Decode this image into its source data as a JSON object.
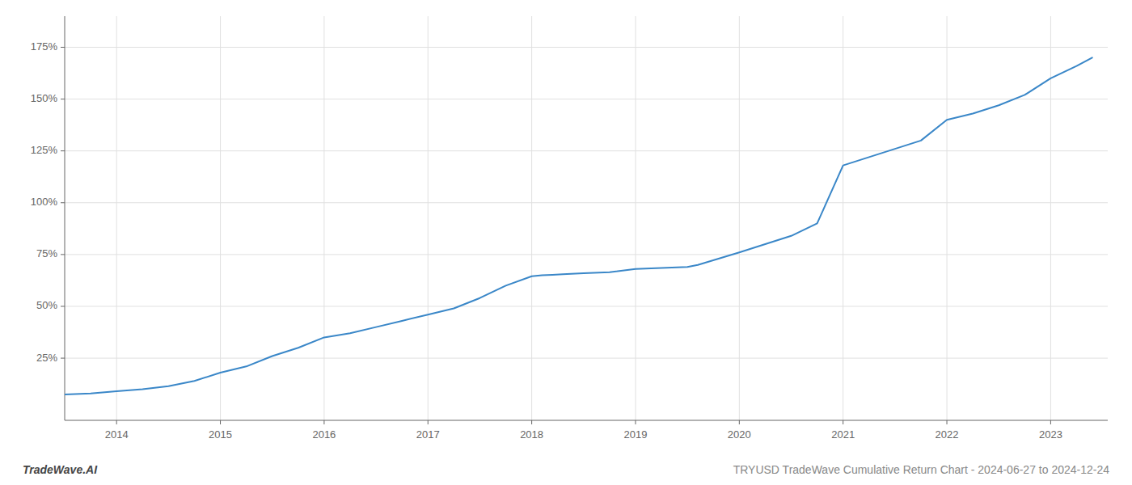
{
  "chart_data": {
    "type": "line",
    "x": [
      2013.5,
      2013.75,
      2014.0,
      2014.25,
      2014.5,
      2014.75,
      2015.0,
      2015.25,
      2015.5,
      2015.75,
      2016.0,
      2016.25,
      2016.5,
      2016.75,
      2017.0,
      2017.25,
      2017.5,
      2017.75,
      2018.0,
      2018.1,
      2018.2,
      2018.3,
      2018.5,
      2018.75,
      2019.0,
      2019.25,
      2019.5,
      2019.6,
      2020.0,
      2020.25,
      2020.5,
      2020.75,
      2021.0,
      2021.25,
      2021.5,
      2021.75,
      2022.0,
      2022.25,
      2022.5,
      2022.75,
      2023.0,
      2023.25,
      2023.4
    ],
    "values": [
      7.5,
      8.0,
      9.0,
      10.0,
      11.5,
      14.0,
      18.0,
      21.0,
      26.0,
      30.0,
      35.0,
      37.0,
      40.0,
      43.0,
      46.0,
      49.0,
      54.0,
      60.0,
      64.5,
      65.0,
      65.2,
      65.5,
      66.0,
      66.5,
      68.0,
      68.5,
      69.0,
      70.0,
      76.0,
      80.0,
      84.0,
      90.0,
      118.0,
      122.0,
      126.0,
      130.0,
      140.0,
      143.0,
      147.0,
      152.0,
      160.0,
      166.0,
      170.0
    ],
    "color": "#3a87c8",
    "xlim": [
      2013.5,
      2023.55
    ],
    "ylim": [
      -5,
      190
    ],
    "xticks": [
      2014,
      2015,
      2016,
      2017,
      2018,
      2019,
      2020,
      2021,
      2022,
      2023
    ],
    "yticks": [
      {
        "value": 25,
        "label": "25%"
      },
      {
        "value": 50,
        "label": "50%"
      },
      {
        "value": 75,
        "label": "75%"
      },
      {
        "value": 100,
        "label": "100%"
      },
      {
        "value": 125,
        "label": "125%"
      },
      {
        "value": 150,
        "label": "150%"
      },
      {
        "value": 175,
        "label": "175%"
      }
    ],
    "grid": true,
    "annotations": [
      "TradeWave.AI",
      "TRYUSD TradeWave Cumulative Return Chart - 2024-06-27 to 2024-12-24"
    ]
  }
}
